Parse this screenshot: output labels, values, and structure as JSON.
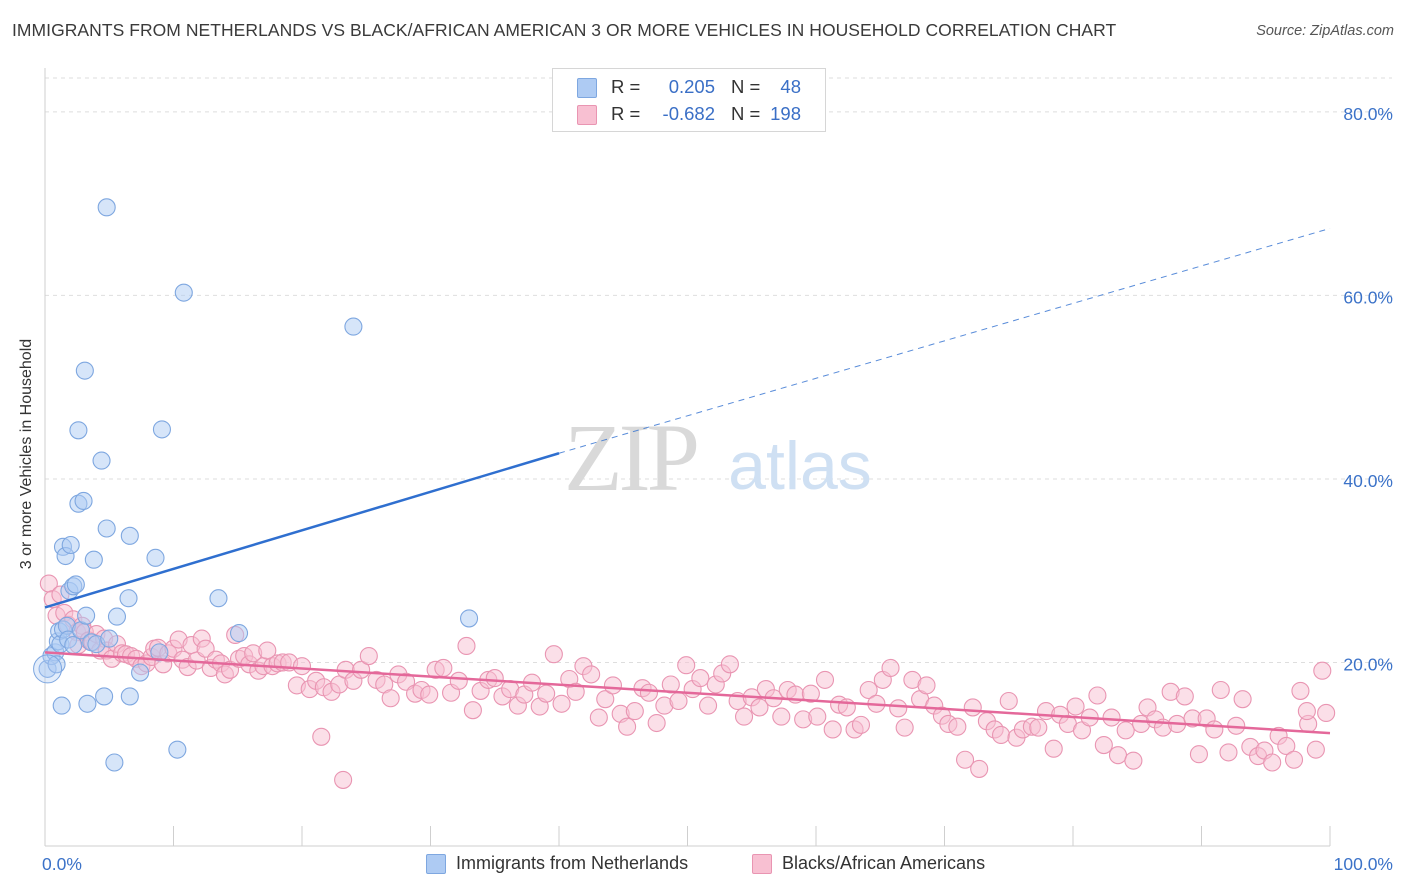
{
  "title": "IMMIGRANTS FROM NETHERLANDS VS BLACK/AFRICAN AMERICAN 3 OR MORE VEHICLES IN HOUSEHOLD CORRELATION CHART",
  "source": "Source: ZipAtlas.com",
  "watermark": {
    "zip": "ZIP",
    "atlas": "atlas"
  },
  "stats": [
    {
      "r_label": "R =",
      "r_value": "0.205",
      "n_label": "N =",
      "n_value": "48",
      "color": "#aecbf3",
      "border": "#7ea7e0"
    },
    {
      "r_label": "R =",
      "r_value": "-0.682",
      "n_label": "N =",
      "n_value": "198",
      "color": "#f8c0d2",
      "border": "#e995b2"
    }
  ],
  "legend": [
    {
      "label": "Immigrants from Netherlands",
      "color": "#aecbf3",
      "border": "#7ea7e0"
    },
    {
      "label": "Blacks/African Americans",
      "color": "#f8c0d2",
      "border": "#e995b2"
    }
  ],
  "chart_data": {
    "type": "scatter",
    "title": "IMMIGRANTS FROM NETHERLANDS VS BLACK/AFRICAN AMERICAN 3 OR MORE VEHICLES IN HOUSEHOLD CORRELATION CHART",
    "xlabel": "",
    "ylabel": "3 or more Vehicles in Household",
    "xlim": [
      0,
      100
    ],
    "ylim": [
      0,
      85
    ],
    "x_tick_labels": [
      "0.0%",
      "100.0%"
    ],
    "y_ticks": [
      20,
      40,
      60,
      80
    ],
    "y_tick_labels": [
      "20.0%",
      "40.0%",
      "60.0%",
      "80.0%"
    ],
    "grid": "horizontal dashed",
    "legend_position": "bottom-center",
    "series": [
      {
        "name": "Immigrants from Netherlands",
        "color": "#aecbf3",
        "stroke": "#7ea7e0",
        "line_color": "#2f6fcf",
        "trend": {
          "x": [
            0,
            40
          ],
          "y": [
            26.0,
            42.8
          ],
          "dashed_to": [
            100,
            67.3
          ]
        },
        "points": [
          [
            0.2,
            19.3
          ],
          [
            0.5,
            20.7
          ],
          [
            0.8,
            21.1
          ],
          [
            0.9,
            19.8
          ],
          [
            1.0,
            22.3
          ],
          [
            1.1,
            23.4
          ],
          [
            1.2,
            22.0
          ],
          [
            1.4,
            23.6
          ],
          [
            1.3,
            15.3
          ],
          [
            1.4,
            32.6
          ],
          [
            1.6,
            31.6
          ],
          [
            1.7,
            24.0
          ],
          [
            1.8,
            22.5
          ],
          [
            1.9,
            27.8
          ],
          [
            2.0,
            32.8
          ],
          [
            2.2,
            28.3
          ],
          [
            2.2,
            21.9
          ],
          [
            2.4,
            28.5
          ],
          [
            2.6,
            45.3
          ],
          [
            2.6,
            37.3
          ],
          [
            2.8,
            23.5
          ],
          [
            3.0,
            37.6
          ],
          [
            3.1,
            51.8
          ],
          [
            3.2,
            25.1
          ],
          [
            3.3,
            15.5
          ],
          [
            3.6,
            22.2
          ],
          [
            3.8,
            31.2
          ],
          [
            4.0,
            22.0
          ],
          [
            4.4,
            42.0
          ],
          [
            4.6,
            16.3
          ],
          [
            4.8,
            34.6
          ],
          [
            5.0,
            22.6
          ],
          [
            4.8,
            69.6
          ],
          [
            5.4,
            9.1
          ],
          [
            5.6,
            25.0
          ],
          [
            6.5,
            27.0
          ],
          [
            6.6,
            16.3
          ],
          [
            6.6,
            33.8
          ],
          [
            7.4,
            18.9
          ],
          [
            8.6,
            31.4
          ],
          [
            8.9,
            21.1
          ],
          [
            9.1,
            45.4
          ],
          [
            10.3,
            10.5
          ],
          [
            10.8,
            60.3
          ],
          [
            13.5,
            27.0
          ],
          [
            15.1,
            23.2
          ],
          [
            24.0,
            56.6
          ],
          [
            33.0,
            24.8
          ]
        ]
      },
      {
        "name": "Blacks/African Americans",
        "color": "#f8c0d2",
        "stroke": "#e995b2",
        "line_color": "#e4689a",
        "trend": {
          "x": [
            0,
            100
          ],
          "y": [
            21.1,
            12.3
          ]
        },
        "points": [
          [
            0.3,
            28.6
          ],
          [
            0.6,
            26.9
          ],
          [
            0.9,
            25.1
          ],
          [
            1.2,
            27.4
          ],
          [
            1.5,
            25.4
          ],
          [
            1.8,
            24.1
          ],
          [
            2.2,
            24.7
          ],
          [
            2.5,
            23.3
          ],
          [
            2.6,
            21.9
          ],
          [
            2.9,
            24.0
          ],
          [
            3.1,
            23.3
          ],
          [
            3.4,
            22.4
          ],
          [
            3.7,
            22.2
          ],
          [
            4.0,
            23.1
          ],
          [
            4.3,
            21.3
          ],
          [
            4.6,
            22.6
          ],
          [
            4.8,
            21.3
          ],
          [
            5.2,
            20.4
          ],
          [
            5.6,
            22.0
          ],
          [
            6.0,
            21.0
          ],
          [
            6.3,
            20.9
          ],
          [
            6.7,
            20.7
          ],
          [
            7.1,
            20.4
          ],
          [
            7.5,
            19.6
          ],
          [
            7.9,
            19.9
          ],
          [
            8.3,
            20.6
          ],
          [
            8.5,
            21.5
          ],
          [
            8.8,
            21.6
          ],
          [
            9.2,
            19.8
          ],
          [
            9.6,
            21.0
          ],
          [
            10.0,
            21.5
          ],
          [
            10.4,
            22.5
          ],
          [
            10.7,
            20.3
          ],
          [
            11.1,
            19.5
          ],
          [
            11.4,
            21.9
          ],
          [
            11.8,
            20.2
          ],
          [
            12.2,
            22.6
          ],
          [
            12.5,
            21.5
          ],
          [
            12.9,
            19.4
          ],
          [
            13.3,
            20.3
          ],
          [
            13.7,
            19.9
          ],
          [
            14.0,
            18.7
          ],
          [
            14.4,
            19.2
          ],
          [
            14.8,
            23.0
          ],
          [
            15.1,
            20.4
          ],
          [
            15.5,
            20.7
          ],
          [
            15.9,
            19.8
          ],
          [
            16.2,
            21.0
          ],
          [
            16.6,
            19.1
          ],
          [
            17.0,
            19.6
          ],
          [
            17.3,
            21.3
          ],
          [
            17.7,
            19.6
          ],
          [
            18.1,
            19.9
          ],
          [
            18.5,
            20.0
          ],
          [
            19.0,
            20.0
          ],
          [
            19.6,
            17.5
          ],
          [
            20.0,
            19.6
          ],
          [
            20.6,
            17.1
          ],
          [
            21.1,
            18.0
          ],
          [
            21.7,
            17.3
          ],
          [
            22.3,
            16.8
          ],
          [
            22.9,
            17.6
          ],
          [
            23.4,
            19.2
          ],
          [
            24.0,
            18.0
          ],
          [
            24.6,
            19.2
          ],
          [
            25.2,
            20.7
          ],
          [
            25.8,
            18.1
          ],
          [
            26.4,
            17.6
          ],
          [
            26.9,
            16.1
          ],
          [
            27.5,
            18.7
          ],
          [
            28.1,
            17.9
          ],
          [
            28.8,
            16.6
          ],
          [
            29.3,
            17.0
          ],
          [
            29.9,
            16.5
          ],
          [
            30.4,
            19.2
          ],
          [
            31.0,
            19.4
          ],
          [
            31.6,
            16.7
          ],
          [
            32.2,
            18.0
          ],
          [
            32.8,
            21.8
          ],
          [
            33.3,
            14.8
          ],
          [
            33.9,
            16.9
          ],
          [
            34.5,
            18.1
          ],
          [
            35.0,
            18.3
          ],
          [
            35.6,
            16.3
          ],
          [
            36.2,
            17.1
          ],
          [
            36.8,
            15.3
          ],
          [
            37.3,
            16.5
          ],
          [
            37.9,
            17.8
          ],
          [
            38.5,
            15.2
          ],
          [
            39.0,
            16.6
          ],
          [
            39.6,
            20.9
          ],
          [
            40.2,
            15.5
          ],
          [
            40.8,
            18.2
          ],
          [
            41.3,
            16.8
          ],
          [
            41.9,
            19.6
          ],
          [
            42.5,
            18.7
          ],
          [
            43.1,
            14.0
          ],
          [
            43.6,
            16.0
          ],
          [
            44.2,
            17.5
          ],
          [
            44.8,
            14.4
          ],
          [
            45.3,
            13.0
          ],
          [
            45.9,
            14.7
          ],
          [
            46.5,
            17.2
          ],
          [
            47.0,
            16.7
          ],
          [
            47.6,
            13.4
          ],
          [
            48.2,
            15.3
          ],
          [
            48.7,
            17.6
          ],
          [
            49.3,
            15.8
          ],
          [
            49.9,
            19.7
          ],
          [
            50.4,
            17.1
          ],
          [
            51.0,
            18.3
          ],
          [
            51.6,
            15.3
          ],
          [
            52.2,
            17.6
          ],
          [
            52.7,
            18.8
          ],
          [
            53.3,
            19.8
          ],
          [
            53.9,
            15.8
          ],
          [
            54.4,
            14.1
          ],
          [
            55.0,
            16.2
          ],
          [
            55.6,
            15.1
          ],
          [
            56.1,
            17.1
          ],
          [
            56.7,
            16.1
          ],
          [
            57.3,
            14.1
          ],
          [
            57.8,
            17.0
          ],
          [
            58.4,
            16.5
          ],
          [
            59.0,
            13.8
          ],
          [
            59.6,
            16.6
          ],
          [
            60.1,
            14.1
          ],
          [
            60.7,
            18.1
          ],
          [
            61.3,
            12.7
          ],
          [
            61.8,
            15.4
          ],
          [
            62.4,
            15.1
          ],
          [
            63.0,
            12.7
          ],
          [
            63.5,
            13.2
          ],
          [
            64.1,
            17.0
          ],
          [
            64.7,
            15.5
          ],
          [
            65.2,
            18.1
          ],
          [
            65.8,
            19.4
          ],
          [
            66.4,
            15.0
          ],
          [
            66.9,
            12.9
          ],
          [
            67.5,
            18.1
          ],
          [
            68.1,
            16.0
          ],
          [
            68.6,
            17.5
          ],
          [
            69.2,
            15.3
          ],
          [
            69.8,
            14.2
          ],
          [
            70.3,
            13.3
          ],
          [
            71.0,
            13.0
          ],
          [
            71.6,
            9.4
          ],
          [
            72.2,
            15.1
          ],
          [
            72.7,
            8.4
          ],
          [
            73.3,
            13.6
          ],
          [
            73.9,
            12.7
          ],
          [
            74.4,
            12.1
          ],
          [
            75.0,
            15.8
          ],
          [
            75.6,
            11.8
          ],
          [
            76.1,
            12.7
          ],
          [
            76.8,
            13.0
          ],
          [
            77.3,
            12.9
          ],
          [
            77.9,
            14.7
          ],
          [
            78.5,
            10.6
          ],
          [
            79.0,
            14.3
          ],
          [
            79.6,
            13.3
          ],
          [
            80.2,
            15.2
          ],
          [
            80.7,
            12.6
          ],
          [
            81.3,
            14.0
          ],
          [
            81.9,
            16.4
          ],
          [
            82.4,
            11.0
          ],
          [
            83.0,
            14.0
          ],
          [
            83.5,
            9.9
          ],
          [
            84.1,
            12.6
          ],
          [
            84.7,
            9.3
          ],
          [
            85.3,
            13.3
          ],
          [
            85.8,
            15.1
          ],
          [
            86.4,
            13.8
          ],
          [
            87.0,
            12.9
          ],
          [
            87.6,
            16.8
          ],
          [
            88.1,
            13.3
          ],
          [
            88.7,
            16.3
          ],
          [
            89.3,
            13.9
          ],
          [
            89.8,
            10.0
          ],
          [
            90.4,
            13.9
          ],
          [
            91.0,
            12.7
          ],
          [
            91.5,
            17.0
          ],
          [
            92.1,
            10.2
          ],
          [
            92.7,
            13.1
          ],
          [
            93.2,
            16.0
          ],
          [
            93.8,
            10.8
          ],
          [
            94.4,
            9.8
          ],
          [
            94.9,
            10.4
          ],
          [
            95.5,
            9.1
          ],
          [
            96.0,
            12.0
          ],
          [
            96.6,
            10.9
          ],
          [
            97.2,
            9.4
          ],
          [
            97.7,
            16.9
          ],
          [
            98.3,
            13.3
          ],
          [
            98.9,
            10.5
          ],
          [
            99.4,
            19.1
          ],
          [
            99.7,
            14.5
          ],
          [
            98.2,
            14.7
          ],
          [
            21.5,
            11.9
          ],
          [
            23.2,
            7.2
          ]
        ]
      }
    ]
  }
}
